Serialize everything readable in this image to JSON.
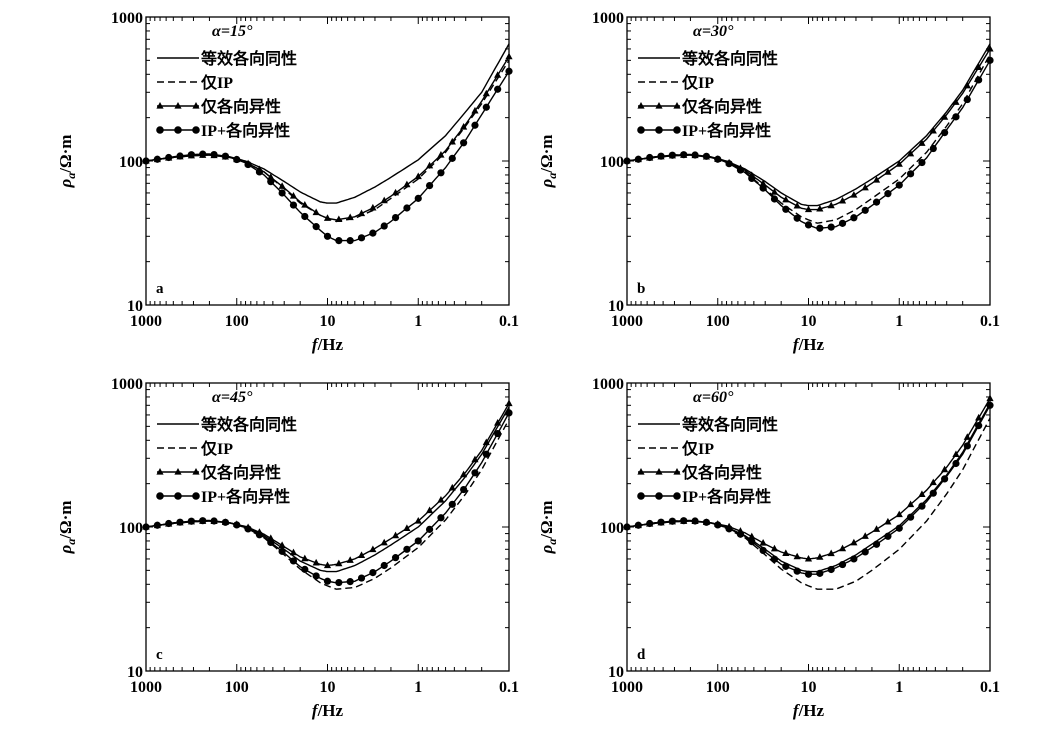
{
  "figure": {
    "legend_labels": [
      "等效各向同性",
      "仅IP",
      "仅各向异性",
      "IP+各向异性"
    ],
    "xlabel_var": "f",
    "xlabel_unit": "/Hz",
    "ylabel_var": "ρ",
    "ylabel_sub": "a",
    "ylabel_unit": "/Ω·m",
    "x_ticks": [
      "1000",
      "100",
      "10",
      "1",
      "0.1"
    ],
    "y_ticks": [
      "10",
      "100",
      "1000"
    ]
  },
  "chart_data": [
    {
      "type": "line",
      "panel": "a",
      "annotation": "α=15°",
      "x_scale": "log",
      "x_reversed": true,
      "xlim": [
        1000,
        0.1
      ],
      "y_scale": "log",
      "ylim": [
        10,
        1000
      ],
      "xlabel": "f/Hz",
      "ylabel": "ρa/Ω·m",
      "grid": false,
      "legend_position": "top-left",
      "series": [
        {
          "name": "等效各向同性",
          "style": "solid",
          "marker": "none",
          "x": [
            1000,
            500,
            300,
            200,
            120,
            80,
            50,
            30,
            20,
            12,
            10,
            8,
            5,
            3,
            2,
            1,
            0.5,
            0.3,
            0.2,
            0.1
          ],
          "y": [
            100,
            106,
            109,
            110,
            107,
            100,
            88,
            72,
            61,
            52,
            51,
            51,
            56,
            66,
            77,
            102,
            150,
            220,
            300,
            650
          ]
        },
        {
          "name": "仅IP",
          "style": "dashed",
          "marker": "none",
          "x": [
            1000,
            500,
            300,
            200,
            120,
            80,
            50,
            30,
            20,
            12,
            10,
            8,
            5,
            3,
            2,
            1,
            0.5,
            0.3,
            0.2,
            0.1
          ],
          "y": [
            100,
            106,
            110,
            110,
            106,
            98,
            84,
            64,
            51,
            42,
            40,
            38,
            40,
            46,
            55,
            75,
            115,
            175,
            250,
            500
          ]
        },
        {
          "name": "仅各向异性",
          "style": "solid",
          "marker": "triangle",
          "x": [
            1000,
            500,
            300,
            200,
            120,
            80,
            50,
            30,
            20,
            12,
            10,
            8,
            5,
            3,
            2,
            1,
            0.5,
            0.3,
            0.2,
            0.1
          ],
          "y": [
            100,
            106,
            109,
            110,
            106,
            98,
            84,
            65,
            52,
            42,
            40,
            39,
            41,
            48,
            57,
            78,
            118,
            180,
            260,
            530
          ]
        },
        {
          "name": "IP+各向异性",
          "style": "solid",
          "marker": "circle",
          "x": [
            1000,
            500,
            300,
            200,
            120,
            80,
            50,
            30,
            20,
            12,
            10,
            8,
            5,
            3,
            2,
            1,
            0.5,
            0.3,
            0.2,
            0.1
          ],
          "y": [
            100,
            107,
            111,
            112,
            107,
            97,
            80,
            58,
            44,
            33,
            30,
            28,
            28,
            32,
            38,
            55,
            90,
            140,
            210,
            420
          ]
        }
      ]
    },
    {
      "type": "line",
      "panel": "b",
      "annotation": "α=30°",
      "x_scale": "log",
      "x_reversed": true,
      "xlim": [
        1000,
        0.1
      ],
      "y_scale": "log",
      "ylim": [
        10,
        1000
      ],
      "xlabel": "f/Hz",
      "ylabel": "ρa/Ω·m",
      "grid": false,
      "legend_position": "top-left",
      "series": [
        {
          "name": "等效各向同性",
          "style": "solid",
          "marker": "none",
          "x": [
            1000,
            500,
            300,
            200,
            120,
            80,
            50,
            30,
            20,
            12,
            10,
            8,
            5,
            3,
            2,
            1,
            0.5,
            0.3,
            0.2,
            0.1
          ],
          "y": [
            100,
            106,
            109,
            110,
            107,
            100,
            88,
            72,
            60,
            50,
            49,
            49,
            54,
            64,
            75,
            100,
            150,
            220,
            310,
            650
          ]
        },
        {
          "name": "仅IP",
          "style": "dashed",
          "marker": "none",
          "x": [
            1000,
            500,
            300,
            200,
            120,
            80,
            50,
            30,
            20,
            12,
            10,
            8,
            5,
            3,
            2,
            1,
            0.5,
            0.3,
            0.2,
            0.1
          ],
          "y": [
            100,
            106,
            110,
            110,
            106,
            98,
            84,
            64,
            51,
            41,
            39,
            37,
            39,
            46,
            55,
            75,
            115,
            175,
            250,
            550
          ]
        },
        {
          "name": "仅各向异性",
          "style": "solid",
          "marker": "triangle",
          "x": [
            1000,
            500,
            300,
            200,
            120,
            80,
            50,
            30,
            20,
            12,
            10,
            8,
            5,
            3,
            2,
            1,
            0.5,
            0.3,
            0.2,
            0.1
          ],
          "y": [
            100,
            106,
            109,
            110,
            106,
            99,
            86,
            68,
            56,
            47,
            46,
            46,
            50,
            59,
            70,
            95,
            142,
            210,
            295,
            600
          ]
        },
        {
          "name": "IP+各向异性",
          "style": "solid",
          "marker": "circle",
          "x": [
            1000,
            500,
            300,
            200,
            120,
            80,
            50,
            30,
            20,
            12,
            10,
            8,
            5,
            3,
            2,
            1,
            0.5,
            0.3,
            0.2,
            0.1
          ],
          "y": [
            100,
            107,
            110,
            111,
            107,
            98,
            83,
            63,
            49,
            38,
            36,
            34,
            35,
            41,
            49,
            68,
            105,
            165,
            235,
            500
          ]
        }
      ]
    },
    {
      "type": "line",
      "panel": "c",
      "annotation": "α=45°",
      "x_scale": "log",
      "x_reversed": true,
      "xlim": [
        1000,
        0.1
      ],
      "y_scale": "log",
      "ylim": [
        10,
        1000
      ],
      "xlabel": "f/Hz",
      "ylabel": "ρa/Ω·m",
      "grid": false,
      "legend_position": "top-left",
      "series": [
        {
          "name": "等效各向同性",
          "style": "solid",
          "marker": "none",
          "x": [
            1000,
            500,
            300,
            200,
            120,
            80,
            50,
            30,
            20,
            12,
            10,
            8,
            5,
            3,
            2,
            1,
            0.5,
            0.3,
            0.2,
            0.1
          ],
          "y": [
            100,
            106,
            109,
            110,
            107,
            100,
            87,
            70,
            58,
            50,
            49,
            49,
            54,
            64,
            75,
            100,
            152,
            225,
            320,
            680
          ]
        },
        {
          "name": "仅IP",
          "style": "dashed",
          "marker": "none",
          "x": [
            1000,
            500,
            300,
            200,
            120,
            80,
            50,
            30,
            20,
            12,
            10,
            8,
            5,
            3,
            2,
            1,
            0.5,
            0.3,
            0.2,
            0.1
          ],
          "y": [
            100,
            106,
            110,
            110,
            106,
            98,
            84,
            64,
            51,
            41,
            39,
            37,
            38,
            44,
            52,
            72,
            112,
            170,
            250,
            560
          ]
        },
        {
          "name": "仅各向异性",
          "style": "solid",
          "marker": "triangle",
          "x": [
            1000,
            500,
            300,
            200,
            120,
            80,
            50,
            30,
            20,
            12,
            10,
            8,
            5,
            3,
            2,
            1,
            0.5,
            0.3,
            0.2,
            0.1
          ],
          "y": [
            100,
            106,
            109,
            110,
            107,
            101,
            89,
            73,
            62,
            55,
            54,
            55,
            60,
            71,
            83,
            110,
            165,
            240,
            340,
            720
          ]
        },
        {
          "name": "IP+各向异性",
          "style": "solid",
          "marker": "circle",
          "x": [
            1000,
            500,
            300,
            200,
            120,
            80,
            50,
            30,
            20,
            12,
            10,
            8,
            5,
            3,
            2,
            1,
            0.5,
            0.3,
            0.2,
            0.1
          ],
          "y": [
            100,
            107,
            110,
            111,
            107,
            99,
            85,
            66,
            53,
            44,
            42,
            41,
            42,
            49,
            58,
            80,
            125,
            190,
            280,
            620
          ]
        }
      ]
    },
    {
      "type": "line",
      "panel": "d",
      "annotation": "α=60°",
      "x_scale": "log",
      "x_reversed": true,
      "xlim": [
        1000,
        0.1
      ],
      "y_scale": "log",
      "ylim": [
        10,
        1000
      ],
      "xlabel": "f/Hz",
      "ylabel": "ρa/Ω·m",
      "grid": false,
      "legend_position": "top-left",
      "series": [
        {
          "name": "等效各向同性",
          "style": "solid",
          "marker": "none",
          "x": [
            1000,
            500,
            300,
            200,
            120,
            80,
            50,
            30,
            20,
            12,
            10,
            8,
            5,
            3,
            2,
            1,
            0.5,
            0.3,
            0.2,
            0.1
          ],
          "y": [
            100,
            106,
            109,
            110,
            107,
            100,
            87,
            70,
            58,
            50,
            49,
            49,
            54,
            64,
            76,
            102,
            155,
            230,
            330,
            720
          ]
        },
        {
          "name": "仅IP",
          "style": "dashed",
          "marker": "none",
          "x": [
            1000,
            500,
            300,
            200,
            120,
            80,
            50,
            30,
            20,
            12,
            10,
            8,
            5,
            3,
            2,
            1,
            0.5,
            0.3,
            0.2,
            0.1
          ],
          "y": [
            100,
            106,
            110,
            110,
            106,
            98,
            84,
            64,
            51,
            41,
            39,
            37,
            37,
            42,
            50,
            70,
            110,
            170,
            250,
            570
          ]
        },
        {
          "name": "仅各向异性",
          "style": "solid",
          "marker": "triangle",
          "x": [
            1000,
            500,
            300,
            200,
            120,
            80,
            50,
            30,
            20,
            12,
            10,
            8,
            5,
            3,
            2,
            1,
            0.5,
            0.3,
            0.2,
            0.1
          ],
          "y": [
            100,
            106,
            109,
            110,
            107,
            102,
            91,
            76,
            67,
            61,
            60,
            61,
            67,
            79,
            92,
            122,
            180,
            260,
            370,
            780
          ]
        },
        {
          "name": "IP+各向异性",
          "style": "solid",
          "marker": "circle",
          "x": [
            1000,
            500,
            300,
            200,
            120,
            80,
            50,
            30,
            20,
            12,
            10,
            8,
            5,
            3,
            2,
            1,
            0.5,
            0.3,
            0.2,
            0.1
          ],
          "y": [
            100,
            107,
            110,
            111,
            107,
            99,
            86,
            67,
            55,
            48,
            47,
            47,
            52,
            61,
            72,
            98,
            150,
            225,
            320,
            700
          ]
        }
      ]
    }
  ]
}
